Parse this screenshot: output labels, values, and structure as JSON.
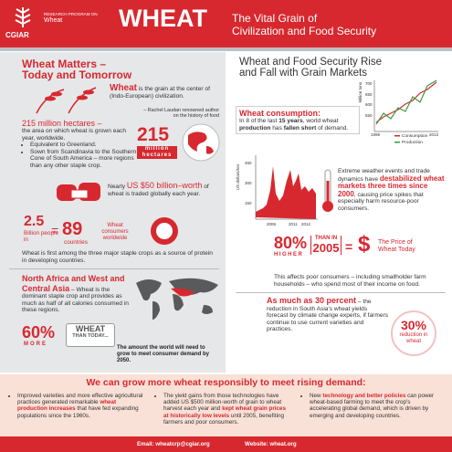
{
  "header": {
    "org": "CGIAR",
    "program_line1": "RESEARCH PROGRAM ON",
    "program_line2": "Wheat",
    "title": "WHEAT",
    "subtitle_line1": "The Vital Grain of",
    "subtitle_line2": "Civilization and Food Security"
  },
  "left": {
    "heading_line1": "Wheat Matters –",
    "heading_line2": "Today and Tomorrow",
    "quote": [
      "Wheat",
      " is the grain at the center of (Indo-European) civilization."
    ],
    "attribution": "– Rachel Laudan renowned author on the history of food",
    "hectares": {
      "lead": "215 million hectares –",
      "text": "the area on which wheat is grown each year, worldwide.",
      "bullets": [
        "Equivalent to Greenland.",
        "Sown from Scandinavia to the Southern Cone of South America – more regions than any other staple crop."
      ],
      "big": "215",
      "unit_line1": "million",
      "unit_line2": "hectares"
    },
    "worth": [
      "Nearly ",
      "US $50 billion–worth",
      " of wheat is traded globally each year."
    ],
    "consumers": {
      "people": "2.5",
      "people_label": "Billion people in",
      "equals": "=",
      "countries": "89",
      "countries_label": "countries",
      "label": "Wheat consumers worldwide"
    },
    "staple": "Wheat is first among the three major staple crops as a source of protein in developing countries.",
    "regions": [
      "North Africa and West and Central Asia",
      " – Wheat is the dominant staple crop and provides as much as half of all calories consumed in these regions."
    ],
    "more": {
      "percent": "60%",
      "more": "MORE",
      "wheat": "WHEAT",
      "than": "THAN TODAY...",
      "note": "The amount the world will need to grow to meet consumer demand by 2050."
    }
  },
  "right": {
    "heading": "Wheat and Food Security Rise and Fall with Grain Markets",
    "chart1": {
      "axis_label": "Million tons",
      "ticks": [
        "700",
        "650",
        "600",
        "550"
      ],
      "x_start": "1998",
      "x_end": "2013",
      "legend": [
        "Consumption",
        "Production"
      ]
    },
    "consumption": {
      "lead": "Wheat consumption:",
      "text": [
        "In 8 of the last ",
        "15 years",
        ", world wheat ",
        "production",
        " has ",
        "fallen short",
        " of demand."
      ]
    },
    "chart2": {
      "axis_label": "US dollars/ton",
      "ticks": [
        "450",
        "300",
        "150"
      ],
      "years": [
        "2006",
        "2011",
        "2012"
      ]
    },
    "weather": [
      "Extreme weather events and trade dynamics have ",
      "destabilized wheat markets three times since 2000",
      ", causing price spikes that especially harm resource-poor consumers."
    ],
    "price": {
      "percent": "80%",
      "higher": "HIGHER",
      "than": "THAN IN",
      "year": "2005",
      "equals": "=",
      "symbol": "$",
      "label": "The Price of Wheat Today"
    },
    "affects": "This affects poor consumers – including smallholder farm households – who spend most of their income on food.",
    "south_asia": [
      "As much as 30 percent",
      " – the reduction in South Asia's wheat yields forecast by climate change experts, if farmers continue to use current varieties and practices."
    ],
    "circle": {
      "percent": "30%",
      "label": "reduction in wheat"
    }
  },
  "bottom": {
    "heading": "We can grow more wheat responsibly to meet rising demand:",
    "columns": [
      [
        "Improved varieties and more effective agricultural practices generated remarkable ",
        "wheat production increases",
        " that have fed expanding populations since the 1960s."
      ],
      [
        "The yield gains from those technologies have added US $500 million-worth of grain to wheat harvest each year and ",
        "kept wheat grain prices at historically low levels",
        " until 2005, benefiting farmers and poor consumers."
      ],
      [
        "New ",
        "technology and better policies",
        " can power wheat-based farming to meet the crop's accelerating global demand, which is driven by emerging and developing countries."
      ]
    ]
  },
  "footer": {
    "email": "Email: wheatcrp@cgiar.org",
    "website": "Website: wheat.org"
  }
}
